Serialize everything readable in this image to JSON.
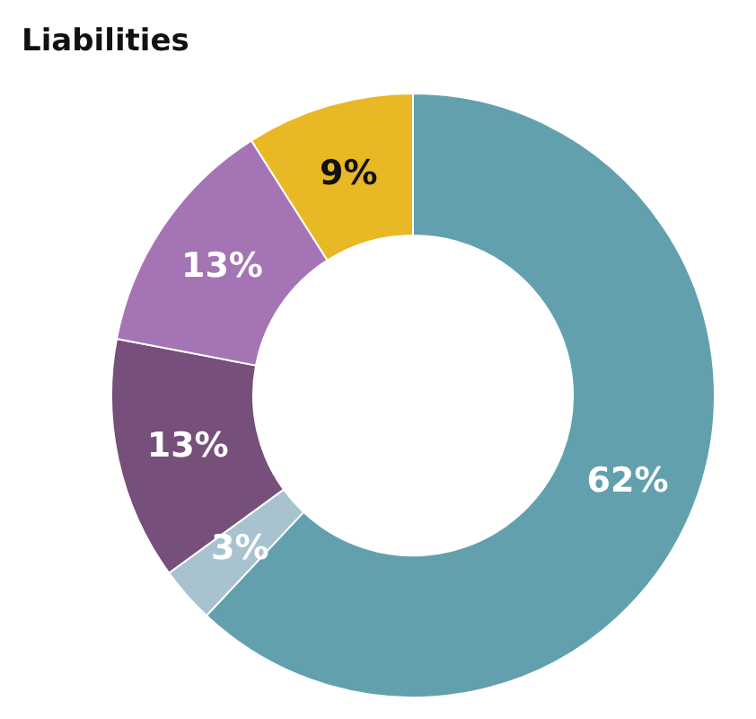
{
  "chart_data": {
    "type": "donut",
    "title": "Liabilities",
    "categories": [
      null,
      null,
      null,
      null,
      null
    ],
    "values": [
      62,
      3,
      13,
      13,
      9
    ],
    "colors": [
      "#62a0ae",
      "#a8c2cf",
      "#764f7a",
      "#a574b4",
      "#e9b825"
    ],
    "value_labels": [
      "62%",
      "3%",
      "13%",
      "13%",
      "9%"
    ]
  }
}
